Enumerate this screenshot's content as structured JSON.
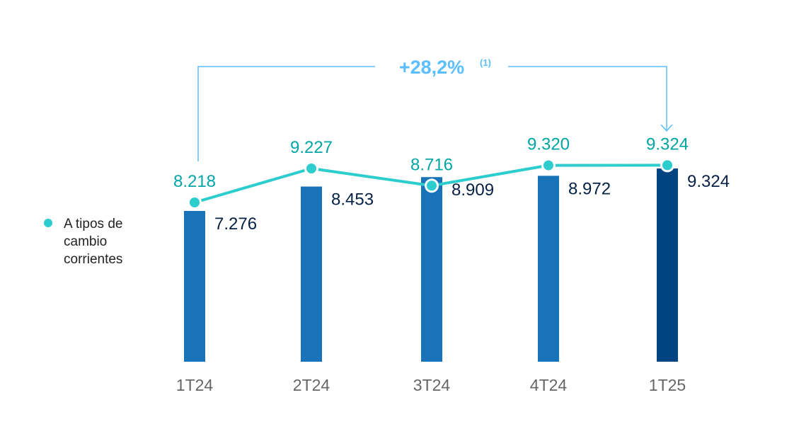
{
  "legend": {
    "label": "A tipos de cambio corrientes"
  },
  "colors": {
    "bar": "#1973b8",
    "bar_highlight": "#004481",
    "line": "#2dcccd",
    "line_label": "#02a5a5",
    "bar_label": "#072146",
    "axis_label": "#666666",
    "growth": "#5bbeff",
    "bracket": "#5bbeff"
  },
  "annotation": {
    "growth": "+28,2%",
    "footnote": "(1)"
  },
  "chart_data": {
    "type": "bar",
    "categories": [
      "1T24",
      "2T24",
      "3T24",
      "4T24",
      "1T25"
    ],
    "series": [
      {
        "values": [
          7276,
          8453,
          8909,
          8972,
          9324
        ],
        "labels": [
          "7.276",
          "8.453",
          "8.909",
          "8.972",
          "9.324"
        ]
      },
      {
        "name": "A tipos de cambio corrientes",
        "type": "line",
        "values": [
          8218,
          9227,
          8716,
          9320,
          9324
        ],
        "labels": [
          "8.218",
          "9.227",
          "8.716",
          "9.320",
          "9.324"
        ]
      }
    ],
    "highlight_index": 4,
    "annotation": "+28,2% (1)"
  }
}
